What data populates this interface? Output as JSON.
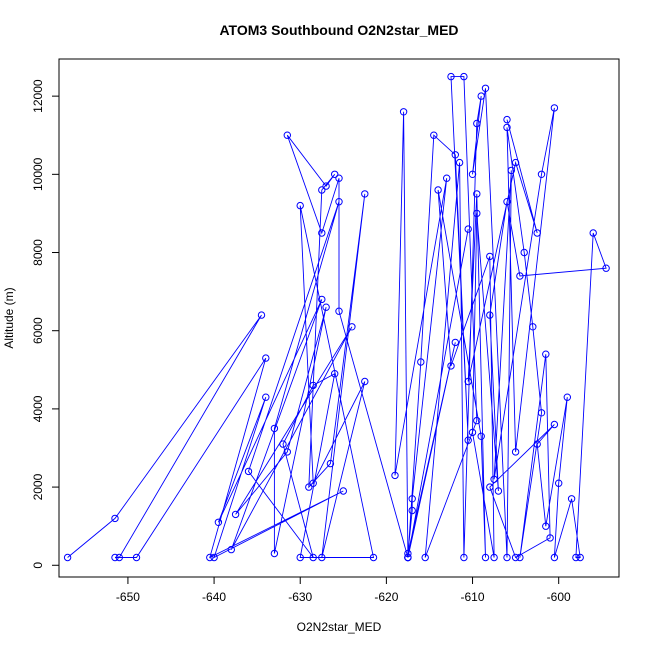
{
  "chart_data": {
    "type": "scatter",
    "title": "ATOM3 Southbound O2N2star_MED",
    "xlabel": "O2N2star_MED",
    "ylabel": "Altitude (m)",
    "xlim": [
      -658,
      -593
    ],
    "ylim": [
      -300,
      12950
    ],
    "xticks": [
      -650,
      -640,
      -630,
      -620,
      -610,
      -600
    ],
    "yticks": [
      0,
      2000,
      4000,
      6000,
      8000,
      10000,
      12000
    ],
    "grid": false,
    "legend": "none",
    "line_color": "#0000ff",
    "marker": "open-circle",
    "series": [
      {
        "x": [
          -657,
          -651.5,
          -634.5,
          -651.0,
          -651.5,
          -649,
          -634,
          -640.5,
          -625,
          -640,
          -634,
          -639.5,
          -627.5,
          -638,
          -624,
          -637.5,
          -631.5,
          -627,
          -633,
          -633,
          -625.5,
          -636,
          -628.5,
          -632,
          -628.5,
          -626,
          -630,
          -621.5,
          -630,
          -628.5,
          -622.5,
          -627.5,
          -622.5,
          -626.5,
          -629,
          -627.5,
          -626,
          -627,
          -631.5,
          -627.5,
          -625.5,
          -625.5,
          -617.5,
          -610.5,
          -617.5,
          -612,
          -617.5,
          -617,
          -617,
          -613,
          -619,
          -618,
          -617.5,
          -616,
          -614.5,
          -612,
          -610.5,
          -612.5,
          -611,
          -609.5,
          -615.5,
          -611.5,
          -611,
          -609.5,
          -609,
          -610,
          -608.5,
          -606,
          -605.5,
          -607.5,
          -602,
          -600.5,
          -605,
          -606,
          -604,
          -603,
          -602,
          -604.5,
          -601.5,
          -601,
          -605,
          -608,
          -600.5,
          -602.5,
          -601.5,
          -599,
          -600,
          -600.5,
          -598.5,
          -597.5,
          -598,
          -596,
          -594.5,
          -604.5,
          -606,
          -608,
          -607,
          -609.5,
          -610,
          -607.5,
          -608,
          -612.5,
          -614,
          -609,
          -608.5,
          -609.5,
          -610.5,
          -605,
          -602.5,
          -606
        ],
        "y": [
          200,
          1200,
          6400,
          200,
          200,
          200,
          5300,
          200,
          1900,
          200,
          4300,
          1100,
          6800,
          400,
          6100,
          1300,
          2900,
          6600,
          300,
          3500,
          9300,
          2400,
          200,
          3100,
          4600,
          4900,
          200,
          200,
          9200,
          2100,
          4700,
          200,
          9500,
          2600,
          2000,
          9600,
          10000,
          9700,
          11000,
          8500,
          9900,
          6500,
          200,
          8600,
          200,
          5700,
          300,
          1400,
          1700,
          9900,
          2300,
          11600,
          200,
          5200,
          11000,
          10500,
          3200,
          12500,
          12500,
          3700,
          200,
          10300,
          200,
          11300,
          12000,
          10000,
          12200,
          200,
          10100,
          2200,
          10000,
          11700,
          2900,
          11200,
          8000,
          6100,
          3900,
          200,
          5400,
          700,
          200,
          2000,
          3600,
          3100,
          1000,
          4300,
          2100,
          200,
          1700,
          200,
          200,
          8500,
          7600,
          7400,
          9300,
          6400,
          1900,
          9000,
          3400,
          200,
          7900,
          5100,
          9600,
          3300,
          200,
          9500,
          4700,
          10300,
          8500,
          11400
        ]
      }
    ]
  }
}
